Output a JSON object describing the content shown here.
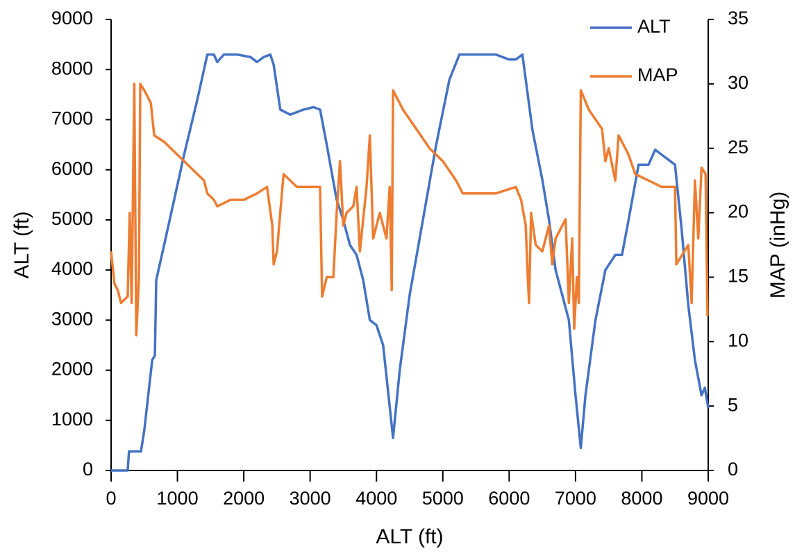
{
  "chart_data": {
    "type": "line",
    "xlabel": "ALT (ft)",
    "ylabel": "ALT (ft)",
    "y2label": "MAP (inHg)",
    "xlim": [
      0,
      9000
    ],
    "xticks": [
      0,
      1000,
      2000,
      3000,
      4000,
      5000,
      6000,
      7000,
      8000,
      9000
    ],
    "ylim": [
      0,
      9000
    ],
    "yticks": [
      0,
      1000,
      2000,
      3000,
      4000,
      5000,
      6000,
      7000,
      8000,
      9000
    ],
    "y2lim": [
      0,
      35
    ],
    "y2ticks": [
      0,
      5,
      10,
      15,
      20,
      25,
      30,
      35
    ],
    "legend": "upper right",
    "series": [
      {
        "name": "ALT",
        "color": "#4472c4",
        "x": [
          0,
          250,
          270,
          450,
          500,
          620,
          660,
          680,
          800,
          1000,
          1100,
          1300,
          1450,
          1550,
          1600,
          1700,
          1900,
          2100,
          2200,
          2300,
          2400,
          2450,
          2550,
          2700,
          2900,
          3050,
          3150,
          3250,
          3400,
          3500,
          3600,
          3700,
          3800,
          3900,
          4000,
          4100,
          4250,
          4350,
          4500,
          4700,
          4900,
          5100,
          5250,
          5500,
          5800,
          6000,
          6100,
          6200,
          6250,
          6350,
          6500,
          6600,
          6700,
          6800,
          6900,
          7000,
          7080,
          7150,
          7300,
          7450,
          7600,
          7700,
          7800,
          7950,
          8100,
          8200,
          8300,
          8400,
          8500,
          8600,
          8700,
          8800,
          8900,
          8950,
          9000
        ],
        "values": [
          0,
          0,
          380,
          380,
          800,
          2200,
          2300,
          3800,
          4500,
          5700,
          6300,
          7400,
          8300,
          8300,
          8150,
          8300,
          8300,
          8250,
          8150,
          8250,
          8300,
          8100,
          7200,
          7100,
          7200,
          7250,
          7200,
          6500,
          5400,
          5000,
          4500,
          4300,
          3800,
          3000,
          2900,
          2500,
          650,
          2000,
          3500,
          5000,
          6500,
          7800,
          8300,
          8300,
          8300,
          8200,
          8200,
          8300,
          7800,
          6800,
          5800,
          5000,
          4000,
          3500,
          3000,
          1500,
          450,
          1500,
          3000,
          4000,
          4300,
          4300,
          5000,
          6100,
          6100,
          6400,
          6300,
          6200,
          6100,
          4800,
          3300,
          2200,
          1500,
          1650,
          1250
        ]
      },
      {
        "name": "MAP",
        "color": "#ed7d31",
        "axis": "y2",
        "x": [
          0,
          50,
          100,
          150,
          250,
          280,
          310,
          350,
          380,
          420,
          440,
          500,
          600,
          650,
          800,
          1000,
          1200,
          1400,
          1450,
          1550,
          1600,
          1800,
          2000,
          2200,
          2350,
          2430,
          2450,
          2500,
          2600,
          2700,
          2800,
          3000,
          3150,
          3180,
          3250,
          3350,
          3400,
          3450,
          3500,
          3550,
          3650,
          3700,
          3750,
          3850,
          3900,
          3950,
          4050,
          4150,
          4200,
          4230,
          4250,
          4400,
          4600,
          4800,
          5000,
          5200,
          5300,
          5500,
          5800,
          6100,
          6180,
          6250,
          6280,
          6300,
          6330,
          6400,
          6500,
          6600,
          6650,
          6700,
          6800,
          6850,
          6900,
          6950,
          6980,
          7020,
          7050,
          7080,
          7200,
          7400,
          7450,
          7500,
          7600,
          7650,
          7800,
          7900,
          8100,
          8300,
          8500,
          8520,
          8700,
          8750,
          8800,
          8850,
          8900,
          8960,
          8990
        ],
        "values": [
          17,
          14.5,
          14,
          13,
          13.5,
          20,
          13,
          30,
          10.5,
          15,
          30,
          29.5,
          28.5,
          26,
          25.5,
          24.5,
          23.5,
          22.5,
          21.5,
          21,
          20.5,
          21,
          21,
          21.5,
          22,
          19,
          16,
          17,
          23,
          22.5,
          22,
          22,
          22,
          13.5,
          15,
          15,
          20,
          24,
          19,
          20,
          20.5,
          22,
          17,
          22,
          26,
          18,
          20,
          18,
          22,
          14,
          29.5,
          28,
          26.5,
          25,
          24,
          22.5,
          21.5,
          21.5,
          21.5,
          22,
          21,
          19,
          15,
          13,
          20,
          17.5,
          17,
          19,
          16,
          18,
          19,
          19.5,
          13,
          18,
          11,
          15,
          13,
          29.5,
          28,
          26.5,
          24,
          25,
          22.5,
          26,
          24.5,
          23,
          22.5,
          22,
          22,
          16,
          17.5,
          13,
          22.5,
          18,
          23.5,
          23,
          12
        ]
      }
    ]
  }
}
